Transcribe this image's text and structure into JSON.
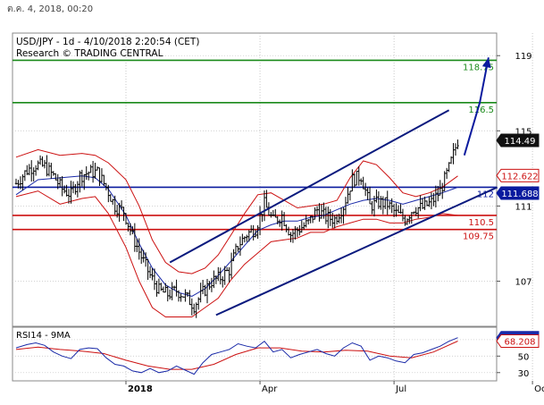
{
  "header": {
    "datestamp": "ต.ค. 4, 2018, 00:20"
  },
  "chart_data": {
    "type": "candlestick",
    "title": "USD/JPY - 1d - 4/10/2018 2:20:54 (CET)",
    "subtitle": "Research © TRADING CENTRAL",
    "x_ticks": [
      "2018",
      "Apr",
      "Jul",
      "Oct"
    ],
    "y_ticks": [
      107,
      111,
      115,
      119
    ],
    "ylim": [
      104.6,
      120.2
    ],
    "horizontal_levels": [
      {
        "label": "118.75",
        "value": 118.75,
        "color": "#1a8a1a"
      },
      {
        "label": "116.5",
        "value": 116.5,
        "color": "#1a8a1a"
      },
      {
        "label": "112",
        "value": 112.0,
        "color": "#0a1a9e"
      },
      {
        "label": "110.5",
        "value": 110.5,
        "color": "#cc1111"
      },
      {
        "label": "109.75",
        "value": 109.75,
        "color": "#cc1111"
      }
    ],
    "price_badges": [
      {
        "label": "114.49",
        "value": 114.49,
        "bg": "#111111",
        "fg": "#ffffff"
      },
      {
        "label": "112.622",
        "value": 112.622,
        "bg": "#ffffff",
        "fg": "#cc1111"
      },
      {
        "label": "111.688",
        "value": 111.688,
        "bg": "#0a1a9e",
        "fg": "#ffffff"
      }
    ],
    "close_path": [
      [
        0,
        112.2
      ],
      [
        5,
        112.9
      ],
      [
        9,
        113.2
      ],
      [
        13,
        113.1
      ],
      [
        17,
        112.6
      ],
      [
        21,
        111.9
      ],
      [
        25,
        111.6
      ],
      [
        29,
        112.6
      ],
      [
        33,
        112.8
      ],
      [
        37,
        112.8
      ],
      [
        41,
        112.0
      ],
      [
        45,
        111.0
      ],
      [
        49,
        110.7
      ],
      [
        53,
        109.4
      ],
      [
        57,
        108.3
      ],
      [
        61,
        107.3
      ],
      [
        65,
        106.5
      ],
      [
        69,
        106.3
      ],
      [
        73,
        106.5
      ],
      [
        77,
        106.2
      ],
      [
        81,
        105.7
      ],
      [
        85,
        106.4
      ],
      [
        89,
        107.0
      ],
      [
        93,
        107.2
      ],
      [
        97,
        107.6
      ],
      [
        101,
        108.9
      ],
      [
        105,
        109.5
      ],
      [
        109,
        109.8
      ],
      [
        113,
        111.1
      ],
      [
        117,
        110.2
      ],
      [
        121,
        110.5
      ],
      [
        125,
        109.5
      ],
      [
        129,
        109.8
      ],
      [
        133,
        110.1
      ],
      [
        137,
        110.8
      ],
      [
        141,
        110.4
      ],
      [
        145,
        110.3
      ],
      [
        149,
        111.0
      ],
      [
        153,
        112.4
      ],
      [
        157,
        112.6
      ],
      [
        161,
        111.0
      ],
      [
        165,
        111.2
      ],
      [
        169,
        111.1
      ],
      [
        173,
        110.6
      ],
      [
        177,
        110.3
      ],
      [
        181,
        110.9
      ],
      [
        185,
        110.9
      ],
      [
        189,
        111.2
      ],
      [
        193,
        111.8
      ],
      [
        197,
        113.0
      ],
      [
        201,
        114.49
      ]
    ],
    "upper_band": [
      [
        0,
        113.6
      ],
      [
        10,
        114.0
      ],
      [
        20,
        113.7
      ],
      [
        30,
        113.8
      ],
      [
        36,
        113.7
      ],
      [
        42,
        113.3
      ],
      [
        50,
        112.4
      ],
      [
        56,
        111.0
      ],
      [
        62,
        109.2
      ],
      [
        68,
        108.0
      ],
      [
        74,
        107.5
      ],
      [
        80,
        107.4
      ],
      [
        86,
        107.7
      ],
      [
        92,
        108.4
      ],
      [
        98,
        109.5
      ],
      [
        104,
        110.6
      ],
      [
        110,
        111.6
      ],
      [
        116,
        111.7
      ],
      [
        122,
        111.3
      ],
      [
        128,
        110.9
      ],
      [
        134,
        111.0
      ],
      [
        140,
        111.1
      ],
      [
        146,
        111.3
      ],
      [
        152,
        112.5
      ],
      [
        158,
        113.4
      ],
      [
        164,
        113.2
      ],
      [
        170,
        112.5
      ],
      [
        176,
        111.7
      ],
      [
        182,
        111.5
      ],
      [
        188,
        111.7
      ],
      [
        194,
        112.0
      ],
      [
        201,
        112.6
      ]
    ],
    "lower_band": [
      [
        0,
        111.5
      ],
      [
        10,
        111.8
      ],
      [
        20,
        111.1
      ],
      [
        30,
        111.4
      ],
      [
        36,
        111.5
      ],
      [
        42,
        110.6
      ],
      [
        50,
        108.8
      ],
      [
        56,
        107.0
      ],
      [
        62,
        105.6
      ],
      [
        68,
        105.1
      ],
      [
        74,
        105.1
      ],
      [
        80,
        105.1
      ],
      [
        86,
        105.6
      ],
      [
        92,
        106.1
      ],
      [
        98,
        107.1
      ],
      [
        104,
        107.9
      ],
      [
        110,
        108.5
      ],
      [
        116,
        109.1
      ],
      [
        122,
        109.2
      ],
      [
        128,
        109.3
      ],
      [
        134,
        109.6
      ],
      [
        140,
        109.6
      ],
      [
        146,
        109.9
      ],
      [
        152,
        110.1
      ],
      [
        158,
        110.3
      ],
      [
        164,
        110.3
      ],
      [
        170,
        110.1
      ],
      [
        176,
        110.1
      ],
      [
        182,
        110.3
      ],
      [
        188,
        110.4
      ],
      [
        194,
        110.6
      ],
      [
        201,
        110.5
      ]
    ],
    "moving_average": [
      [
        0,
        111.6
      ],
      [
        10,
        112.4
      ],
      [
        20,
        112.5
      ],
      [
        30,
        112.6
      ],
      [
        36,
        112.5
      ],
      [
        42,
        111.9
      ],
      [
        50,
        110.5
      ],
      [
        56,
        109.0
      ],
      [
        62,
        107.7
      ],
      [
        68,
        106.8
      ],
      [
        74,
        106.4
      ],
      [
        80,
        106.2
      ],
      [
        86,
        106.6
      ],
      [
        92,
        107.3
      ],
      [
        98,
        108.1
      ],
      [
        104,
        108.9
      ],
      [
        110,
        109.7
      ],
      [
        116,
        110.0
      ],
      [
        122,
        110.2
      ],
      [
        128,
        110.2
      ],
      [
        134,
        110.4
      ],
      [
        140,
        110.5
      ],
      [
        146,
        110.8
      ],
      [
        152,
        111.1
      ],
      [
        158,
        111.3
      ],
      [
        164,
        111.4
      ],
      [
        170,
        111.3
      ],
      [
        176,
        111.1
      ],
      [
        182,
        111.3
      ],
      [
        188,
        111.5
      ],
      [
        194,
        111.7
      ],
      [
        201,
        112.0
      ]
    ],
    "channel": {
      "upper": [
        [
          70,
          108.0
        ],
        [
          197,
          116.1
        ]
      ],
      "lower": [
        [
          91,
          105.2
        ],
        [
          219,
          112.0
        ]
      ]
    },
    "projection": [
      [
        204,
        113.7
      ],
      [
        211,
        116.5
      ],
      [
        215,
        118.9
      ]
    ],
    "rsi": {
      "label": "RSI14 - 9MA",
      "ylim": [
        20,
        85
      ],
      "y_ticks": [
        30,
        50,
        70
      ],
      "rsi_value_label": "72.2892",
      "ma_value_label": "68.208",
      "rsi_value": 72.29,
      "ma_value": 68.21,
      "rsi_path": [
        [
          0,
          60
        ],
        [
          5,
          64
        ],
        [
          9,
          66
        ],
        [
          13,
          63
        ],
        [
          17,
          55
        ],
        [
          21,
          50
        ],
        [
          25,
          47
        ],
        [
          29,
          58
        ],
        [
          33,
          60
        ],
        [
          37,
          59
        ],
        [
          41,
          48
        ],
        [
          45,
          40
        ],
        [
          49,
          38
        ],
        [
          53,
          32
        ],
        [
          57,
          30
        ],
        [
          61,
          35
        ],
        [
          65,
          30
        ],
        [
          69,
          32
        ],
        [
          73,
          38
        ],
        [
          77,
          33
        ],
        [
          81,
          28
        ],
        [
          85,
          42
        ],
        [
          89,
          52
        ],
        [
          93,
          55
        ],
        [
          97,
          58
        ],
        [
          101,
          65
        ],
        [
          105,
          62
        ],
        [
          109,
          60
        ],
        [
          113,
          68
        ],
        [
          117,
          55
        ],
        [
          121,
          58
        ],
        [
          125,
          48
        ],
        [
          129,
          52
        ],
        [
          133,
          55
        ],
        [
          137,
          58
        ],
        [
          141,
          53
        ],
        [
          145,
          50
        ],
        [
          149,
          60
        ],
        [
          153,
          66
        ],
        [
          157,
          62
        ],
        [
          161,
          45
        ],
        [
          165,
          50
        ],
        [
          169,
          48
        ],
        [
          173,
          44
        ],
        [
          177,
          42
        ],
        [
          181,
          52
        ],
        [
          185,
          54
        ],
        [
          189,
          58
        ],
        [
          193,
          62
        ],
        [
          197,
          68
        ],
        [
          201,
          72.29
        ]
      ],
      "ma_path": [
        [
          0,
          58
        ],
        [
          10,
          61
        ],
        [
          20,
          58
        ],
        [
          30,
          56
        ],
        [
          40,
          53
        ],
        [
          50,
          45
        ],
        [
          60,
          38
        ],
        [
          70,
          34
        ],
        [
          80,
          34
        ],
        [
          90,
          40
        ],
        [
          100,
          52
        ],
        [
          110,
          60
        ],
        [
          120,
          60
        ],
        [
          130,
          56
        ],
        [
          140,
          55
        ],
        [
          150,
          57
        ],
        [
          160,
          56
        ],
        [
          170,
          50
        ],
        [
          180,
          48
        ],
        [
          190,
          55
        ],
        [
          201,
          68.21
        ]
      ]
    }
  }
}
